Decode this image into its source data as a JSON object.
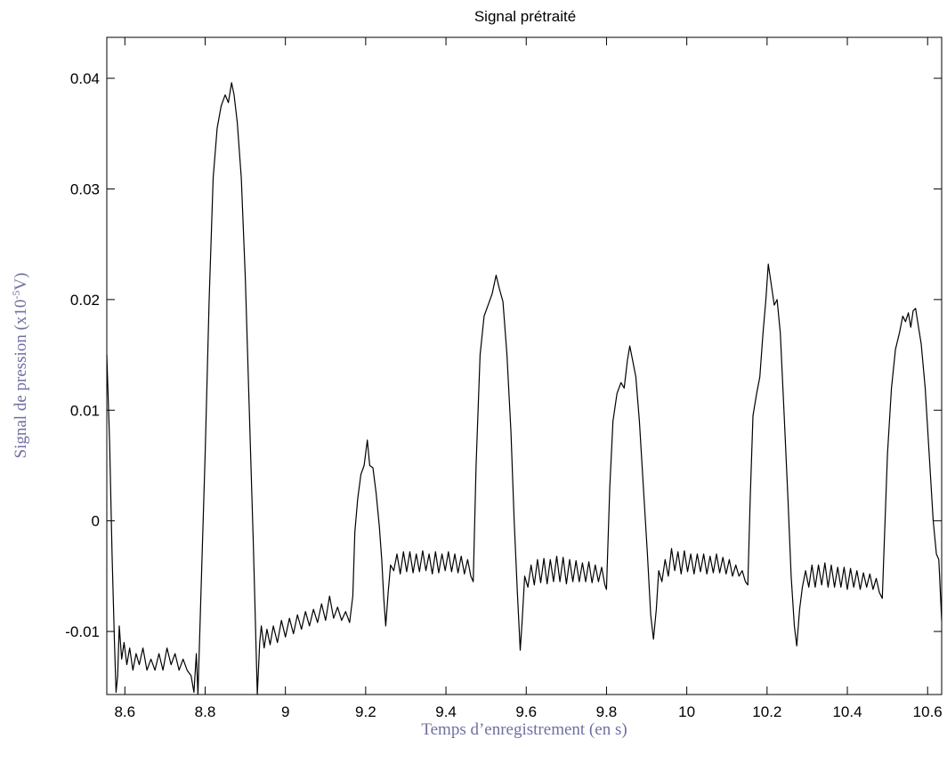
{
  "chart_data": {
    "type": "line",
    "title": "Signal prétraité",
    "xlabel": "Temps d’enregistrement (en s)",
    "ylabel": {
      "pre": "Signal de pression (x10",
      "sup": "-5",
      "post": "V)"
    },
    "xlim": [
      8.555,
      10.635
    ],
    "ylim": [
      -0.0157,
      0.0437
    ],
    "xticks": [
      8.6,
      8.8,
      9.0,
      9.2,
      9.4,
      9.6,
      9.8,
      10.0,
      10.2,
      10.4,
      10.6
    ],
    "xtick_labels": [
      "8.6",
      "8.8",
      "9",
      "9.2",
      "9.4",
      "9.6",
      "9.8",
      "10",
      "10.2",
      "10.4",
      "10.6"
    ],
    "yticks": [
      -0.01,
      0.0,
      0.01,
      0.02,
      0.03,
      0.04
    ],
    "ytick_labels": [
      "-0.01",
      "0",
      "0.01",
      "0.02",
      "0.03",
      "0.04"
    ],
    "grid": false,
    "line_color": "#000000",
    "series": [
      {
        "points": [
          [
            8.555,
            0.015
          ],
          [
            8.562,
            0.007
          ],
          [
            8.568,
            -0.003
          ],
          [
            8.574,
            -0.011
          ],
          [
            8.578,
            -0.0155
          ],
          [
            8.582,
            -0.014
          ],
          [
            8.586,
            -0.0095
          ],
          [
            8.592,
            -0.0125
          ],
          [
            8.598,
            -0.011
          ],
          [
            8.605,
            -0.013
          ],
          [
            8.612,
            -0.0115
          ],
          [
            8.62,
            -0.0135
          ],
          [
            8.628,
            -0.012
          ],
          [
            8.636,
            -0.013
          ],
          [
            8.645,
            -0.0115
          ],
          [
            8.655,
            -0.0135
          ],
          [
            8.665,
            -0.0125
          ],
          [
            8.675,
            -0.0135
          ],
          [
            8.685,
            -0.012
          ],
          [
            8.695,
            -0.0135
          ],
          [
            8.705,
            -0.0115
          ],
          [
            8.715,
            -0.013
          ],
          [
            8.725,
            -0.012
          ],
          [
            8.735,
            -0.0135
          ],
          [
            8.745,
            -0.0125
          ],
          [
            8.755,
            -0.0135
          ],
          [
            8.765,
            -0.014
          ],
          [
            8.772,
            -0.0155
          ],
          [
            8.778,
            -0.012
          ],
          [
            8.782,
            -0.0157
          ],
          [
            8.79,
            -0.006
          ],
          [
            8.8,
            0.006
          ],
          [
            8.81,
            0.02
          ],
          [
            8.82,
            0.031
          ],
          [
            8.83,
            0.0355
          ],
          [
            8.84,
            0.0375
          ],
          [
            8.85,
            0.0385
          ],
          [
            8.858,
            0.0378
          ],
          [
            8.866,
            0.0396
          ],
          [
            8.872,
            0.0385
          ],
          [
            8.88,
            0.036
          ],
          [
            8.89,
            0.031
          ],
          [
            8.9,
            0.022
          ],
          [
            8.91,
            0.01
          ],
          [
            8.92,
            -0.002
          ],
          [
            8.93,
            -0.0157
          ],
          [
            8.936,
            -0.011
          ],
          [
            8.94,
            -0.0095
          ],
          [
            8.947,
            -0.0115
          ],
          [
            8.954,
            -0.0098
          ],
          [
            8.962,
            -0.0112
          ],
          [
            8.97,
            -0.0095
          ],
          [
            8.98,
            -0.011
          ],
          [
            8.99,
            -0.009
          ],
          [
            9.0,
            -0.0105
          ],
          [
            9.01,
            -0.0088
          ],
          [
            9.02,
            -0.0102
          ],
          [
            9.03,
            -0.0085
          ],
          [
            9.04,
            -0.0098
          ],
          [
            9.05,
            -0.0082
          ],
          [
            9.06,
            -0.0095
          ],
          [
            9.07,
            -0.008
          ],
          [
            9.08,
            -0.0092
          ],
          [
            9.09,
            -0.0075
          ],
          [
            9.1,
            -0.009
          ],
          [
            9.11,
            -0.0068
          ],
          [
            9.12,
            -0.0088
          ],
          [
            9.13,
            -0.0078
          ],
          [
            9.14,
            -0.009
          ],
          [
            9.15,
            -0.0082
          ],
          [
            9.16,
            -0.0092
          ],
          [
            9.168,
            -0.0068
          ],
          [
            9.173,
            -0.001
          ],
          [
            9.18,
            0.002
          ],
          [
            9.188,
            0.0042
          ],
          [
            9.196,
            0.005
          ],
          [
            9.204,
            0.0073
          ],
          [
            9.21,
            0.005
          ],
          [
            9.218,
            0.0048
          ],
          [
            9.226,
            0.0025
          ],
          [
            9.234,
            -0.0005
          ],
          [
            9.24,
            -0.0035
          ],
          [
            9.245,
            -0.007
          ],
          [
            9.25,
            -0.0095
          ],
          [
            9.256,
            -0.0065
          ],
          [
            9.262,
            -0.004
          ],
          [
            9.27,
            -0.0045
          ],
          [
            9.278,
            -0.003
          ],
          [
            9.286,
            -0.0048
          ],
          [
            9.294,
            -0.0028
          ],
          [
            9.302,
            -0.0046
          ],
          [
            9.31,
            -0.0028
          ],
          [
            9.318,
            -0.0047
          ],
          [
            9.326,
            -0.003
          ],
          [
            9.334,
            -0.0046
          ],
          [
            9.342,
            -0.0027
          ],
          [
            9.35,
            -0.0045
          ],
          [
            9.358,
            -0.003
          ],
          [
            9.366,
            -0.0048
          ],
          [
            9.374,
            -0.0028
          ],
          [
            9.382,
            -0.0047
          ],
          [
            9.39,
            -0.003
          ],
          [
            9.398,
            -0.0045
          ],
          [
            9.406,
            -0.0028
          ],
          [
            9.414,
            -0.0046
          ],
          [
            9.422,
            -0.003
          ],
          [
            9.43,
            -0.0047
          ],
          [
            9.438,
            -0.0032
          ],
          [
            9.446,
            -0.0048
          ],
          [
            9.454,
            -0.0035
          ],
          [
            9.462,
            -0.005
          ],
          [
            9.468,
            -0.0055
          ],
          [
            9.475,
            0.005
          ],
          [
            9.485,
            0.015
          ],
          [
            9.495,
            0.0185
          ],
          [
            9.505,
            0.0195
          ],
          [
            9.515,
            0.0205
          ],
          [
            9.525,
            0.0222
          ],
          [
            9.533,
            0.021
          ],
          [
            9.542,
            0.0198
          ],
          [
            9.552,
            0.015
          ],
          [
            9.562,
            0.008
          ],
          [
            9.57,
            0.0
          ],
          [
            9.578,
            -0.0065
          ],
          [
            9.585,
            -0.0117
          ],
          [
            9.59,
            -0.009
          ],
          [
            9.596,
            -0.005
          ],
          [
            9.604,
            -0.006
          ],
          [
            9.612,
            -0.004
          ],
          [
            9.62,
            -0.0058
          ],
          [
            9.628,
            -0.0035
          ],
          [
            9.636,
            -0.0056
          ],
          [
            9.644,
            -0.0034
          ],
          [
            9.652,
            -0.0057
          ],
          [
            9.66,
            -0.0035
          ],
          [
            9.668,
            -0.0055
          ],
          [
            9.676,
            -0.0032
          ],
          [
            9.684,
            -0.0055
          ],
          [
            9.692,
            -0.0033
          ],
          [
            9.7,
            -0.0057
          ],
          [
            9.708,
            -0.0035
          ],
          [
            9.716,
            -0.0055
          ],
          [
            9.724,
            -0.0036
          ],
          [
            9.732,
            -0.0055
          ],
          [
            9.74,
            -0.0038
          ],
          [
            9.748,
            -0.0055
          ],
          [
            9.756,
            -0.0037
          ],
          [
            9.764,
            -0.0056
          ],
          [
            9.772,
            -0.004
          ],
          [
            9.78,
            -0.0055
          ],
          [
            9.788,
            -0.0042
          ],
          [
            9.796,
            -0.0058
          ],
          [
            9.8,
            -0.0062
          ],
          [
            9.808,
            0.003
          ],
          [
            9.816,
            0.009
          ],
          [
            9.826,
            0.0115
          ],
          [
            9.836,
            0.0125
          ],
          [
            9.844,
            0.012
          ],
          [
            9.852,
            0.0145
          ],
          [
            9.858,
            0.0158
          ],
          [
            9.865,
            0.0145
          ],
          [
            9.873,
            0.013
          ],
          [
            9.882,
            0.009
          ],
          [
            9.892,
            0.003
          ],
          [
            9.902,
            -0.003
          ],
          [
            9.91,
            -0.0085
          ],
          [
            9.917,
            -0.0107
          ],
          [
            9.924,
            -0.008
          ],
          [
            9.93,
            -0.0045
          ],
          [
            9.938,
            -0.0055
          ],
          [
            9.946,
            -0.0035
          ],
          [
            9.954,
            -0.005
          ],
          [
            9.962,
            -0.0025
          ],
          [
            9.97,
            -0.0045
          ],
          [
            9.978,
            -0.0028
          ],
          [
            9.986,
            -0.0048
          ],
          [
            9.994,
            -0.0027
          ],
          [
            10.002,
            -0.0046
          ],
          [
            10.01,
            -0.003
          ],
          [
            10.018,
            -0.0048
          ],
          [
            10.026,
            -0.003
          ],
          [
            10.034,
            -0.0046
          ],
          [
            10.042,
            -0.003
          ],
          [
            10.05,
            -0.0048
          ],
          [
            10.058,
            -0.0032
          ],
          [
            10.066,
            -0.0047
          ],
          [
            10.074,
            -0.003
          ],
          [
            10.082,
            -0.0047
          ],
          [
            10.09,
            -0.0033
          ],
          [
            10.098,
            -0.0048
          ],
          [
            10.106,
            -0.0035
          ],
          [
            10.114,
            -0.005
          ],
          [
            10.122,
            -0.004
          ],
          [
            10.13,
            -0.005
          ],
          [
            10.138,
            -0.0045
          ],
          [
            10.146,
            -0.0055
          ],
          [
            10.152,
            -0.0058
          ],
          [
            10.158,
            0.002
          ],
          [
            10.165,
            0.0095
          ],
          [
            10.174,
            0.0115
          ],
          [
            10.182,
            0.013
          ],
          [
            10.19,
            0.017
          ],
          [
            10.197,
            0.02
          ],
          [
            10.203,
            0.0232
          ],
          [
            10.21,
            0.0215
          ],
          [
            10.218,
            0.0195
          ],
          [
            10.225,
            0.02
          ],
          [
            10.233,
            0.017
          ],
          [
            10.242,
            0.01
          ],
          [
            10.252,
            0.002
          ],
          [
            10.26,
            -0.005
          ],
          [
            10.268,
            -0.0095
          ],
          [
            10.274,
            -0.0113
          ],
          [
            10.281,
            -0.008
          ],
          [
            10.288,
            -0.006
          ],
          [
            10.296,
            -0.0045
          ],
          [
            10.304,
            -0.006
          ],
          [
            10.312,
            -0.004
          ],
          [
            10.32,
            -0.006
          ],
          [
            10.328,
            -0.004
          ],
          [
            10.336,
            -0.0058
          ],
          [
            10.344,
            -0.0038
          ],
          [
            10.352,
            -0.006
          ],
          [
            10.36,
            -0.004
          ],
          [
            10.368,
            -0.006
          ],
          [
            10.376,
            -0.0042
          ],
          [
            10.384,
            -0.006
          ],
          [
            10.392,
            -0.0042
          ],
          [
            10.4,
            -0.0062
          ],
          [
            10.408,
            -0.0043
          ],
          [
            10.416,
            -0.006
          ],
          [
            10.424,
            -0.0045
          ],
          [
            10.432,
            -0.0062
          ],
          [
            10.44,
            -0.0047
          ],
          [
            10.448,
            -0.006
          ],
          [
            10.456,
            -0.0048
          ],
          [
            10.464,
            -0.0062
          ],
          [
            10.472,
            -0.0052
          ],
          [
            10.48,
            -0.0065
          ],
          [
            10.487,
            -0.007
          ],
          [
            10.492,
            -0.002
          ],
          [
            10.5,
            0.006
          ],
          [
            10.51,
            0.012
          ],
          [
            10.52,
            0.0155
          ],
          [
            10.53,
            0.017
          ],
          [
            10.538,
            0.0185
          ],
          [
            10.545,
            0.018
          ],
          [
            10.552,
            0.0188
          ],
          [
            10.558,
            0.0175
          ],
          [
            10.564,
            0.019
          ],
          [
            10.57,
            0.0192
          ],
          [
            10.576,
            0.0178
          ],
          [
            10.584,
            0.016
          ],
          [
            10.594,
            0.012
          ],
          [
            10.604,
            0.006
          ],
          [
            10.614,
            0.0
          ],
          [
            10.622,
            -0.003
          ],
          [
            10.628,
            -0.0035
          ],
          [
            10.635,
            -0.009
          ]
        ]
      }
    ]
  }
}
